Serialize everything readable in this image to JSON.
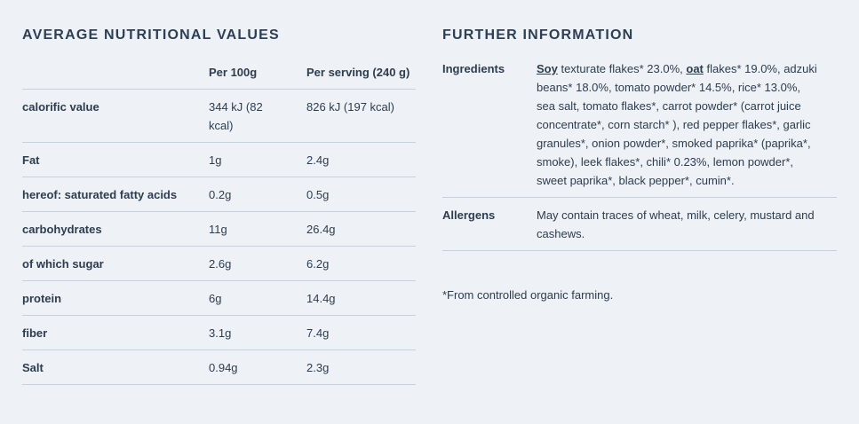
{
  "nutrition": {
    "title": "AVERAGE NUTRITIONAL VALUES",
    "columns": [
      "Per 100g",
      "Per serving (240 g)"
    ],
    "rows": [
      [
        "calorific value",
        "344 kJ (82 kcal)",
        "826 kJ (197 kcal)"
      ],
      [
        "Fat",
        "1g",
        "2.4g"
      ],
      [
        "hereof: saturated fatty acids",
        "0.2g",
        "0.5g"
      ],
      [
        "carbohydrates",
        "11g",
        "26.4g"
      ],
      [
        "of which sugar",
        "2.6g",
        "6.2g"
      ],
      [
        "protein",
        "6g",
        "14.4g"
      ],
      [
        "fiber",
        "3.1g",
        "7.4g"
      ],
      [
        "Salt",
        "0.94g",
        "2.3g"
      ]
    ]
  },
  "further": {
    "title": "FURTHER INFORMATION",
    "ingredients": {
      "label": "Ingredients",
      "parts": [
        "Soy",
        " texturate flakes* 23.0%, ",
        "oat",
        " flakes* 19.0%, adzuki beans* 18.0%, tomato powder* 14.5%, rice* 13.0%, sea salt, tomato flakes*, carrot powder* (carrot juice concentrate*, corn starch* ), red pepper flakes*, garlic granules*, onion powder*, smoked paprika* (paprika*, smoke), leek flakes*, chili* 0.23%, lemon powder*, sweet paprika*, black pepper*, cumin*."
      ]
    },
    "allergens": {
      "label": "Allergens",
      "text": "May contain traces of wheat, milk, celery, mustard and cashews."
    },
    "footnote": "*From controlled organic farming."
  }
}
